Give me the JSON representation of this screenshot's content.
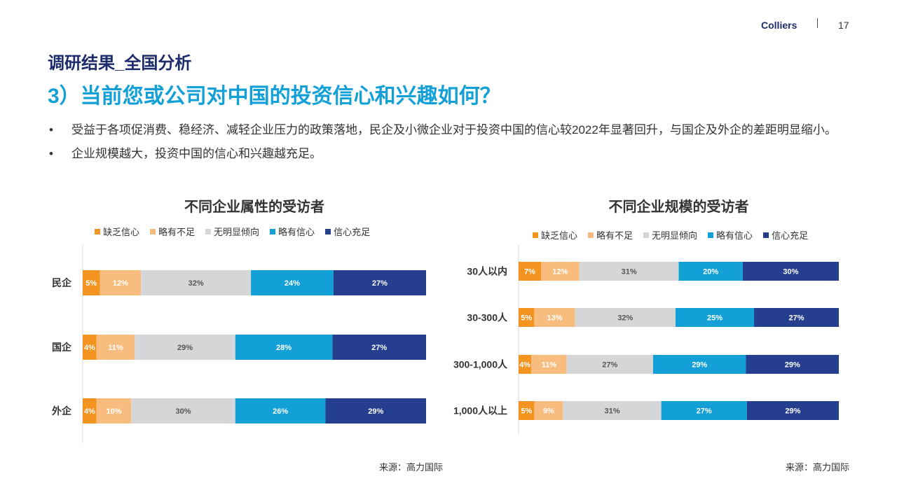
{
  "header": {
    "brand": "Colliers",
    "page_number": "17"
  },
  "section_title": "调研结果_全国分析",
  "main_title": "3）当前您或公司对中国的投资信心和兴趣如何？",
  "bullets": [
    "受益于各项促消费、稳经济、减轻企业压力的政策落地，民企及小微企业对于投资中国的信心较2022年显著回升，与国企及外企的差距明显缩小。",
    "企业规模越大，投资中国的信心和兴趣越充足。"
  ],
  "bullet_marker": "•",
  "legend": [
    {
      "label": "缺乏信心",
      "color": "#f39320"
    },
    {
      "label": "略有不足",
      "color": "#f8bd7e"
    },
    {
      "label": "无明显倾向",
      "color": "#d5d6d8"
    },
    {
      "label": "略有信心",
      "color": "#12a0d7"
    },
    {
      "label": "信心充足",
      "color": "#253f8e"
    }
  ],
  "chart_data": [
    {
      "type": "bar",
      "orientation": "horizontal",
      "stacked": true,
      "title": "不同企业属性的受访者",
      "categories": [
        "民企",
        "国企",
        "外企"
      ],
      "series": [
        {
          "name": "缺乏信心",
          "values": [
            5,
            4,
            4
          ]
        },
        {
          "name": "略有不足",
          "values": [
            12,
            11,
            10
          ]
        },
        {
          "name": "无明显倾向",
          "values": [
            32,
            29,
            30
          ]
        },
        {
          "name": "略有信心",
          "values": [
            24,
            28,
            26
          ]
        },
        {
          "name": "信心充足",
          "values": [
            27,
            27,
            29
          ]
        }
      ],
      "unit": "%",
      "source": "来源：高力国际"
    },
    {
      "type": "bar",
      "orientation": "horizontal",
      "stacked": true,
      "title": "不同企业规模的受访者",
      "categories": [
        "30人以内",
        "30-300人",
        "300-1,000人",
        "1,000人以上"
      ],
      "series": [
        {
          "name": "缺乏信心",
          "values": [
            7,
            5,
            4,
            5
          ]
        },
        {
          "name": "略有不足",
          "values": [
            12,
            13,
            11,
            9
          ]
        },
        {
          "name": "无明显倾向",
          "values": [
            31,
            32,
            27,
            31
          ]
        },
        {
          "name": "略有信心",
          "values": [
            20,
            25,
            29,
            27
          ]
        },
        {
          "name": "信心充足",
          "values": [
            30,
            27,
            29,
            29
          ]
        }
      ],
      "unit": "%",
      "source": "来源：高力国际"
    }
  ]
}
